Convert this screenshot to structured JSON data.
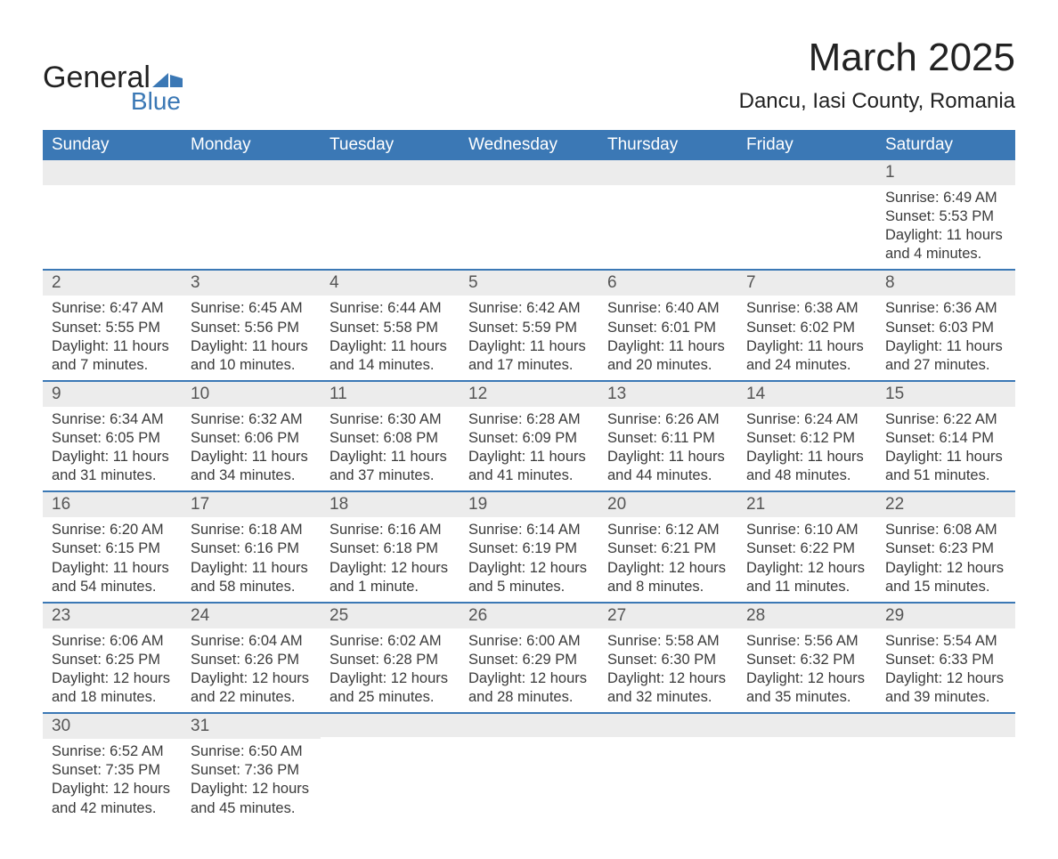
{
  "logo": {
    "word1": "General",
    "word2": "Blue",
    "accent_color": "#3b78b5"
  },
  "title": "March 2025",
  "location": "Dancu, Iasi County, Romania",
  "colors": {
    "header_bg": "#3b78b5",
    "header_text": "#ffffff",
    "daynum_bg": "#ececec",
    "row_divider": "#3b78b5",
    "body_text": "#3a3a3a",
    "background": "#ffffff"
  },
  "typography": {
    "title_fontsize": 44,
    "location_fontsize": 24,
    "dayheader_fontsize": 19,
    "daynum_fontsize": 19,
    "body_fontsize": 16.5
  },
  "day_headers": [
    "Sunday",
    "Monday",
    "Tuesday",
    "Wednesday",
    "Thursday",
    "Friday",
    "Saturday"
  ],
  "weeks": [
    [
      {
        "n": "",
        "sr": "",
        "ss": "",
        "d1": "",
        "d2": ""
      },
      {
        "n": "",
        "sr": "",
        "ss": "",
        "d1": "",
        "d2": ""
      },
      {
        "n": "",
        "sr": "",
        "ss": "",
        "d1": "",
        "d2": ""
      },
      {
        "n": "",
        "sr": "",
        "ss": "",
        "d1": "",
        "d2": ""
      },
      {
        "n": "",
        "sr": "",
        "ss": "",
        "d1": "",
        "d2": ""
      },
      {
        "n": "",
        "sr": "",
        "ss": "",
        "d1": "",
        "d2": ""
      },
      {
        "n": "1",
        "sr": "Sunrise: 6:49 AM",
        "ss": "Sunset: 5:53 PM",
        "d1": "Daylight: 11 hours",
        "d2": "and 4 minutes."
      }
    ],
    [
      {
        "n": "2",
        "sr": "Sunrise: 6:47 AM",
        "ss": "Sunset: 5:55 PM",
        "d1": "Daylight: 11 hours",
        "d2": "and 7 minutes."
      },
      {
        "n": "3",
        "sr": "Sunrise: 6:45 AM",
        "ss": "Sunset: 5:56 PM",
        "d1": "Daylight: 11 hours",
        "d2": "and 10 minutes."
      },
      {
        "n": "4",
        "sr": "Sunrise: 6:44 AM",
        "ss": "Sunset: 5:58 PM",
        "d1": "Daylight: 11 hours",
        "d2": "and 14 minutes."
      },
      {
        "n": "5",
        "sr": "Sunrise: 6:42 AM",
        "ss": "Sunset: 5:59 PM",
        "d1": "Daylight: 11 hours",
        "d2": "and 17 minutes."
      },
      {
        "n": "6",
        "sr": "Sunrise: 6:40 AM",
        "ss": "Sunset: 6:01 PM",
        "d1": "Daylight: 11 hours",
        "d2": "and 20 minutes."
      },
      {
        "n": "7",
        "sr": "Sunrise: 6:38 AM",
        "ss": "Sunset: 6:02 PM",
        "d1": "Daylight: 11 hours",
        "d2": "and 24 minutes."
      },
      {
        "n": "8",
        "sr": "Sunrise: 6:36 AM",
        "ss": "Sunset: 6:03 PM",
        "d1": "Daylight: 11 hours",
        "d2": "and 27 minutes."
      }
    ],
    [
      {
        "n": "9",
        "sr": "Sunrise: 6:34 AM",
        "ss": "Sunset: 6:05 PM",
        "d1": "Daylight: 11 hours",
        "d2": "and 31 minutes."
      },
      {
        "n": "10",
        "sr": "Sunrise: 6:32 AM",
        "ss": "Sunset: 6:06 PM",
        "d1": "Daylight: 11 hours",
        "d2": "and 34 minutes."
      },
      {
        "n": "11",
        "sr": "Sunrise: 6:30 AM",
        "ss": "Sunset: 6:08 PM",
        "d1": "Daylight: 11 hours",
        "d2": "and 37 minutes."
      },
      {
        "n": "12",
        "sr": "Sunrise: 6:28 AM",
        "ss": "Sunset: 6:09 PM",
        "d1": "Daylight: 11 hours",
        "d2": "and 41 minutes."
      },
      {
        "n": "13",
        "sr": "Sunrise: 6:26 AM",
        "ss": "Sunset: 6:11 PM",
        "d1": "Daylight: 11 hours",
        "d2": "and 44 minutes."
      },
      {
        "n": "14",
        "sr": "Sunrise: 6:24 AM",
        "ss": "Sunset: 6:12 PM",
        "d1": "Daylight: 11 hours",
        "d2": "and 48 minutes."
      },
      {
        "n": "15",
        "sr": "Sunrise: 6:22 AM",
        "ss": "Sunset: 6:14 PM",
        "d1": "Daylight: 11 hours",
        "d2": "and 51 minutes."
      }
    ],
    [
      {
        "n": "16",
        "sr": "Sunrise: 6:20 AM",
        "ss": "Sunset: 6:15 PM",
        "d1": "Daylight: 11 hours",
        "d2": "and 54 minutes."
      },
      {
        "n": "17",
        "sr": "Sunrise: 6:18 AM",
        "ss": "Sunset: 6:16 PM",
        "d1": "Daylight: 11 hours",
        "d2": "and 58 minutes."
      },
      {
        "n": "18",
        "sr": "Sunrise: 6:16 AM",
        "ss": "Sunset: 6:18 PM",
        "d1": "Daylight: 12 hours",
        "d2": "and 1 minute."
      },
      {
        "n": "19",
        "sr": "Sunrise: 6:14 AM",
        "ss": "Sunset: 6:19 PM",
        "d1": "Daylight: 12 hours",
        "d2": "and 5 minutes."
      },
      {
        "n": "20",
        "sr": "Sunrise: 6:12 AM",
        "ss": "Sunset: 6:21 PM",
        "d1": "Daylight: 12 hours",
        "d2": "and 8 minutes."
      },
      {
        "n": "21",
        "sr": "Sunrise: 6:10 AM",
        "ss": "Sunset: 6:22 PM",
        "d1": "Daylight: 12 hours",
        "d2": "and 11 minutes."
      },
      {
        "n": "22",
        "sr": "Sunrise: 6:08 AM",
        "ss": "Sunset: 6:23 PM",
        "d1": "Daylight: 12 hours",
        "d2": "and 15 minutes."
      }
    ],
    [
      {
        "n": "23",
        "sr": "Sunrise: 6:06 AM",
        "ss": "Sunset: 6:25 PM",
        "d1": "Daylight: 12 hours",
        "d2": "and 18 minutes."
      },
      {
        "n": "24",
        "sr": "Sunrise: 6:04 AM",
        "ss": "Sunset: 6:26 PM",
        "d1": "Daylight: 12 hours",
        "d2": "and 22 minutes."
      },
      {
        "n": "25",
        "sr": "Sunrise: 6:02 AM",
        "ss": "Sunset: 6:28 PM",
        "d1": "Daylight: 12 hours",
        "d2": "and 25 minutes."
      },
      {
        "n": "26",
        "sr": "Sunrise: 6:00 AM",
        "ss": "Sunset: 6:29 PM",
        "d1": "Daylight: 12 hours",
        "d2": "and 28 minutes."
      },
      {
        "n": "27",
        "sr": "Sunrise: 5:58 AM",
        "ss": "Sunset: 6:30 PM",
        "d1": "Daylight: 12 hours",
        "d2": "and 32 minutes."
      },
      {
        "n": "28",
        "sr": "Sunrise: 5:56 AM",
        "ss": "Sunset: 6:32 PM",
        "d1": "Daylight: 12 hours",
        "d2": "and 35 minutes."
      },
      {
        "n": "29",
        "sr": "Sunrise: 5:54 AM",
        "ss": "Sunset: 6:33 PM",
        "d1": "Daylight: 12 hours",
        "d2": "and 39 minutes."
      }
    ],
    [
      {
        "n": "30",
        "sr": "Sunrise: 6:52 AM",
        "ss": "Sunset: 7:35 PM",
        "d1": "Daylight: 12 hours",
        "d2": "and 42 minutes."
      },
      {
        "n": "31",
        "sr": "Sunrise: 6:50 AM",
        "ss": "Sunset: 7:36 PM",
        "d1": "Daylight: 12 hours",
        "d2": "and 45 minutes."
      },
      {
        "n": "",
        "sr": "",
        "ss": "",
        "d1": "",
        "d2": ""
      },
      {
        "n": "",
        "sr": "",
        "ss": "",
        "d1": "",
        "d2": ""
      },
      {
        "n": "",
        "sr": "",
        "ss": "",
        "d1": "",
        "d2": ""
      },
      {
        "n": "",
        "sr": "",
        "ss": "",
        "d1": "",
        "d2": ""
      },
      {
        "n": "",
        "sr": "",
        "ss": "",
        "d1": "",
        "d2": ""
      }
    ]
  ]
}
